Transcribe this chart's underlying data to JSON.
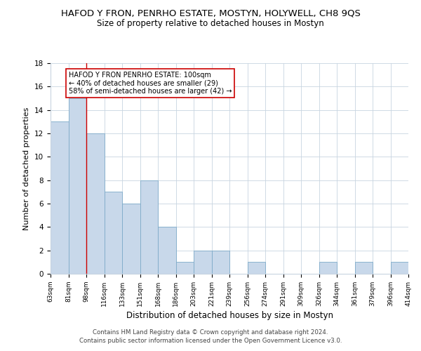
{
  "title": "HAFOD Y FRON, PENRHO ESTATE, MOSTYN, HOLYWELL, CH8 9QS",
  "subtitle": "Size of property relative to detached houses in Mostyn",
  "xlabel": "Distribution of detached houses by size in Mostyn",
  "ylabel": "Number of detached properties",
  "bin_labels": [
    "63sqm",
    "81sqm",
    "98sqm",
    "116sqm",
    "133sqm",
    "151sqm",
    "168sqm",
    "186sqm",
    "203sqm",
    "221sqm",
    "239sqm",
    "256sqm",
    "274sqm",
    "291sqm",
    "309sqm",
    "326sqm",
    "344sqm",
    "361sqm",
    "379sqm",
    "396sqm",
    "414sqm"
  ],
  "bar_heights": [
    13,
    15,
    12,
    7,
    6,
    8,
    4,
    1,
    2,
    2,
    0,
    1,
    0,
    0,
    0,
    1,
    0,
    1,
    0,
    1
  ],
  "bar_color": "#c8d8ea",
  "bar_edge_color": "#7daac8",
  "red_line_index": 2,
  "annotation_line1": "HAFOD Y FRON PENRHO ESTATE: 100sqm",
  "annotation_line2": "← 40% of detached houses are smaller (29)",
  "annotation_line3": "58% of semi-detached houses are larger (42) →",
  "annotation_box_color": "#ffffff",
  "annotation_box_edge": "#cc0000",
  "ylim": [
    0,
    18
  ],
  "yticks": [
    0,
    2,
    4,
    6,
    8,
    10,
    12,
    14,
    16,
    18
  ],
  "footer1": "Contains HM Land Registry data © Crown copyright and database right 2024.",
  "footer2": "Contains public sector information licensed under the Open Government Licence v3.0.",
  "title_fontsize": 9.5,
  "subtitle_fontsize": 8.5,
  "background_color": "#ffffff"
}
